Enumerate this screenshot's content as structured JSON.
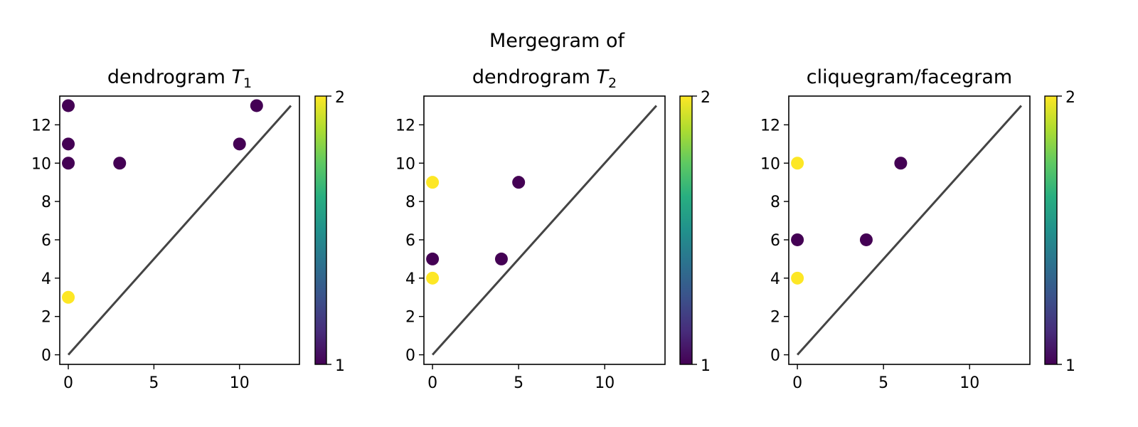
{
  "suptitle": "Mergegram of",
  "chart_data": [
    {
      "type": "scatter",
      "title": "dendrogram ",
      "title_math": "T",
      "title_sub": "1",
      "xlim": [
        -0.5,
        13.5
      ],
      "ylim": [
        -0.5,
        13.5
      ],
      "xticks": [
        0,
        5,
        10
      ],
      "yticks": [
        0,
        2,
        4,
        6,
        8,
        10,
        12
      ],
      "diagonal": [
        0,
        13
      ],
      "points": [
        {
          "x": 0,
          "y": 13,
          "c": 1
        },
        {
          "x": 0,
          "y": 11,
          "c": 1
        },
        {
          "x": 0,
          "y": 10,
          "c": 1
        },
        {
          "x": 3,
          "y": 10,
          "c": 1
        },
        {
          "x": 10,
          "y": 11,
          "c": 1
        },
        {
          "x": 11,
          "y": 13,
          "c": 1
        },
        {
          "x": 0,
          "y": 3,
          "c": 2
        }
      ],
      "colorbar": {
        "min": 1,
        "max": 2,
        "ticks": [
          "1",
          "2"
        ],
        "colormap": "viridis"
      }
    },
    {
      "type": "scatter",
      "title": "dendrogram ",
      "title_math": "T",
      "title_sub": "2",
      "xlim": [
        -0.5,
        13.5
      ],
      "ylim": [
        -0.5,
        13.5
      ],
      "xticks": [
        0,
        5,
        10
      ],
      "yticks": [
        0,
        2,
        4,
        6,
        8,
        10,
        12
      ],
      "diagonal": [
        0,
        13
      ],
      "points": [
        {
          "x": 0,
          "y": 9,
          "c": 2
        },
        {
          "x": 5,
          "y": 9,
          "c": 1
        },
        {
          "x": 0,
          "y": 5,
          "c": 1
        },
        {
          "x": 4,
          "y": 5,
          "c": 1
        },
        {
          "x": 0,
          "y": 4,
          "c": 2
        }
      ],
      "colorbar": {
        "min": 1,
        "max": 2,
        "ticks": [
          "1",
          "2"
        ],
        "colormap": "viridis"
      }
    },
    {
      "type": "scatter",
      "title": "cliquegram/facegram",
      "title_math": "",
      "title_sub": "",
      "xlim": [
        -0.5,
        13.5
      ],
      "ylim": [
        -0.5,
        13.5
      ],
      "xticks": [
        0,
        5,
        10
      ],
      "yticks": [
        0,
        2,
        4,
        6,
        8,
        10,
        12
      ],
      "diagonal": [
        0,
        13
      ],
      "points": [
        {
          "x": 0,
          "y": 10,
          "c": 2
        },
        {
          "x": 6,
          "y": 10,
          "c": 1
        },
        {
          "x": 0,
          "y": 6,
          "c": 1
        },
        {
          "x": 4,
          "y": 6,
          "c": 1
        },
        {
          "x": 0,
          "y": 4,
          "c": 2
        }
      ],
      "colorbar": {
        "min": 1,
        "max": 2,
        "ticks": [
          "1",
          "2"
        ],
        "colormap": "viridis"
      }
    }
  ],
  "colors": {
    "low": "#440154",
    "high": "#fde725",
    "diagonal": "#444444"
  }
}
